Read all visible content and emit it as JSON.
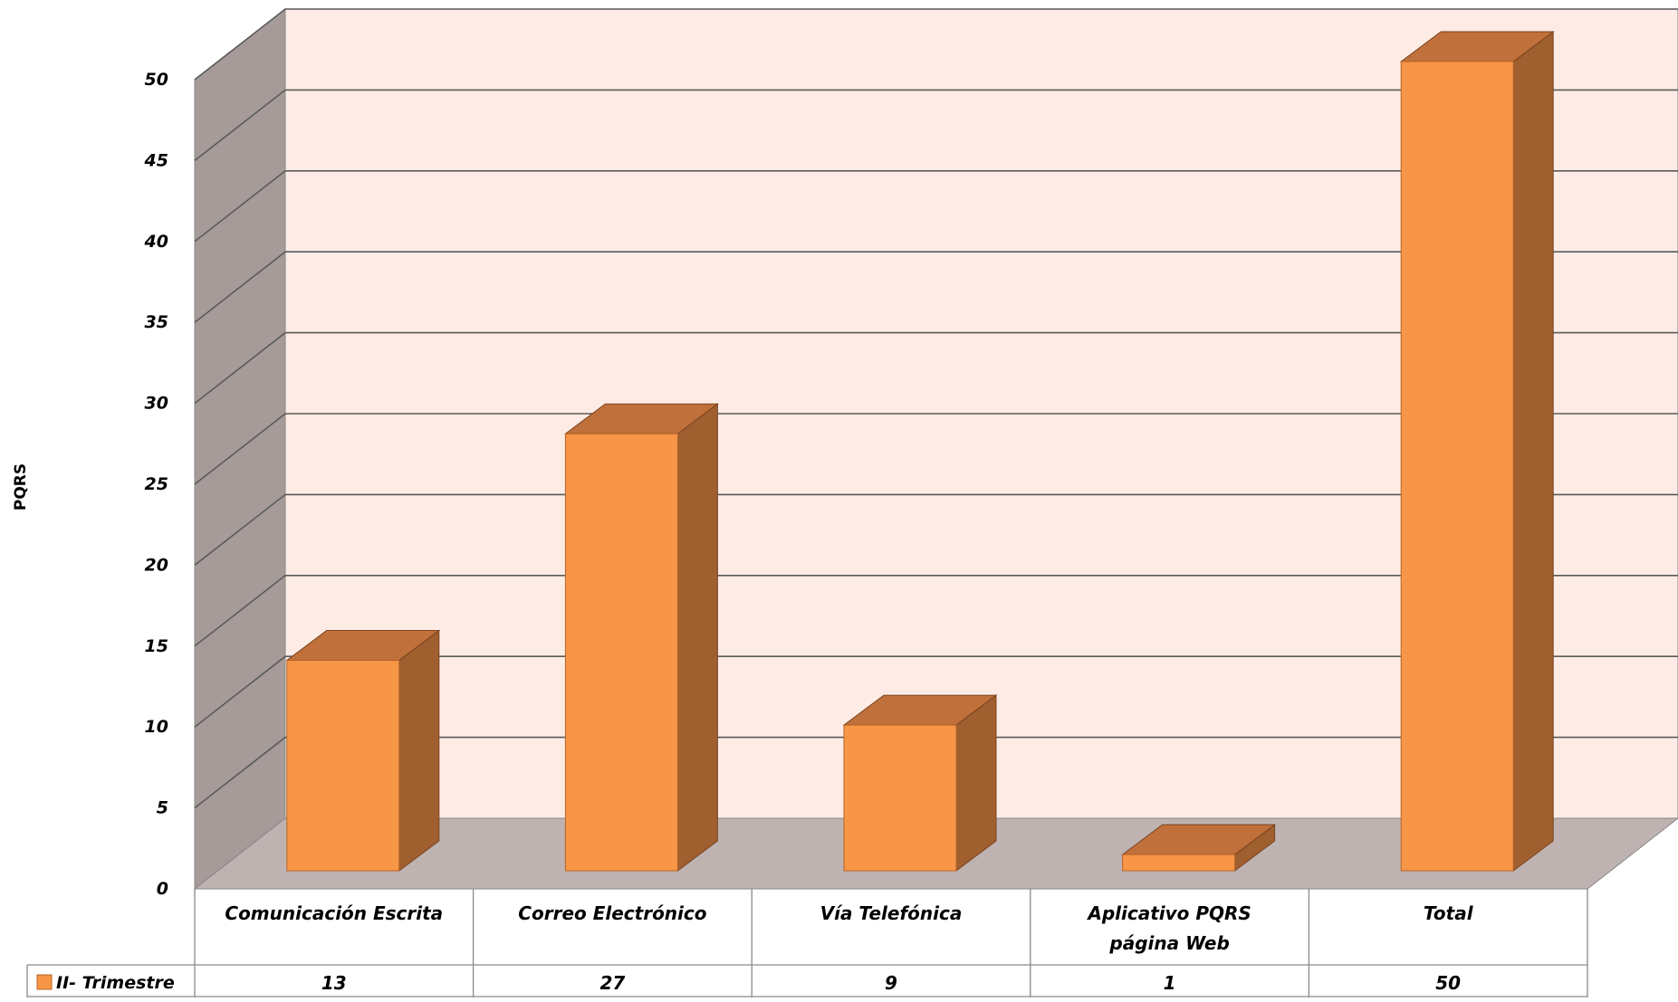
{
  "chart_data": {
    "type": "bar",
    "ylabel": "PQRS",
    "xlabel": "",
    "categories": [
      "Comunicación  Escrita",
      "Correo Electrónico",
      "Vía Telefónica",
      "Aplicativo PQRS página Web",
      "Total"
    ],
    "category_lines": [
      [
        "Comunicación  Escrita"
      ],
      [
        "Correo Electrónico"
      ],
      [
        "Vía Telefónica"
      ],
      [
        "Aplicativo PQRS",
        "página Web"
      ],
      [
        "Total"
      ]
    ],
    "series": [
      {
        "name": "II- Trimestre",
        "values": [
          13,
          27,
          9,
          1,
          50
        ]
      }
    ],
    "value_labels": [
      "13",
      "27",
      "9",
      "1",
      "50"
    ],
    "ylim": [
      0,
      50
    ],
    "yticks": [
      0,
      5,
      10,
      15,
      20,
      25,
      30,
      35,
      40,
      45,
      50
    ],
    "grid": true,
    "legend": "data-table-left",
    "three_d": true,
    "colors": {
      "bar_front": "#F79646",
      "bar_side": "#A05F2E",
      "bar_top": "#C0703A",
      "back_wall": "#FDECE5",
      "side_wall": "#A69B98",
      "floor": "#BEB3B0",
      "gridline": "#5A5A5A"
    }
  }
}
